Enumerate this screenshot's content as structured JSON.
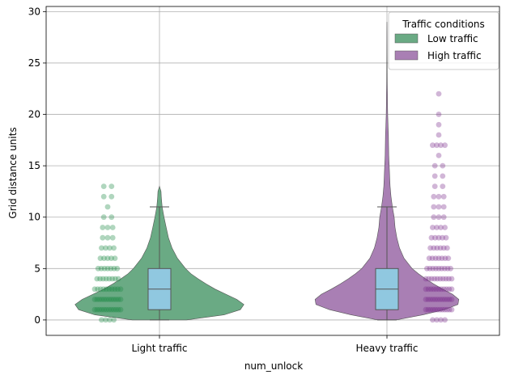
{
  "chart_data": {
    "type": "violin",
    "xlabel": "num_unlock",
    "ylabel": "Grid distance units",
    "ylim": [
      -1.5,
      30.5
    ],
    "yticks": [
      0,
      5,
      10,
      15,
      20,
      25,
      30
    ],
    "categories": [
      "Light traffic",
      "Heavy traffic"
    ],
    "grid": true,
    "legend": {
      "title": "Traffic conditions",
      "placement": "top-right",
      "entries": [
        {
          "label": "Low traffic",
          "color": "#6aaa84"
        },
        {
          "label": "High traffic",
          "color": "#a97fb4"
        }
      ]
    },
    "series": [
      {
        "name": "Low traffic",
        "category": "Light traffic",
        "fill_color": "#6aaa84",
        "point_color": "#1e8a45",
        "box": {
          "q1": 1,
          "median": 3,
          "q3": 5,
          "whisker_low": 0,
          "whisker_high": 11
        },
        "density": [
          [
            0,
            0.3
          ],
          [
            0.5,
            0.72
          ],
          [
            1,
            0.9
          ],
          [
            1.5,
            0.94
          ],
          [
            2,
            0.86
          ],
          [
            2.5,
            0.74
          ],
          [
            3,
            0.62
          ],
          [
            3.5,
            0.52
          ],
          [
            4,
            0.43
          ],
          [
            4.5,
            0.35
          ],
          [
            5,
            0.29
          ],
          [
            6,
            0.2
          ],
          [
            7,
            0.14
          ],
          [
            8,
            0.1
          ],
          [
            9,
            0.075
          ],
          [
            10,
            0.05
          ],
          [
            11,
            0.03
          ],
          [
            12,
            0.02
          ],
          [
            12.5,
            0.017
          ],
          [
            13,
            0.0
          ]
        ],
        "strip_values": [
          0,
          1,
          2,
          3,
          4,
          5,
          6,
          7,
          8,
          9,
          10,
          11,
          12,
          13
        ],
        "strip_counts": [
          4,
          12,
          12,
          10,
          8,
          7,
          5,
          4,
          3,
          3,
          2,
          1,
          2,
          2
        ]
      },
      {
        "name": "High traffic",
        "category": "Heavy traffic",
        "fill_color": "#a97fb4",
        "point_color": "#7a2f8c",
        "box": {
          "q1": 1,
          "median": 3,
          "q3": 5,
          "whisker_low": 0,
          "whisker_high": 11
        },
        "density": [
          [
            0,
            0.1
          ],
          [
            0.5,
            0.4
          ],
          [
            1,
            0.64
          ],
          [
            1.5,
            0.79
          ],
          [
            2,
            0.8
          ],
          [
            2.5,
            0.73
          ],
          [
            3,
            0.62
          ],
          [
            3.5,
            0.52
          ],
          [
            4,
            0.43
          ],
          [
            4.5,
            0.35
          ],
          [
            5,
            0.28
          ],
          [
            6,
            0.19
          ],
          [
            7,
            0.14
          ],
          [
            8,
            0.11
          ],
          [
            9,
            0.09
          ],
          [
            10,
            0.08
          ],
          [
            11,
            0.06
          ],
          [
            12,
            0.045
          ],
          [
            13,
            0.035
          ],
          [
            14,
            0.03
          ],
          [
            15,
            0.025
          ],
          [
            16,
            0.02
          ],
          [
            17,
            0.018
          ],
          [
            18,
            0.016
          ],
          [
            19,
            0.012
          ],
          [
            20,
            0.008
          ],
          [
            21,
            0.006
          ],
          [
            22,
            0.005
          ],
          [
            23,
            0.004
          ],
          [
            24,
            0.003
          ],
          [
            26,
            0.002
          ],
          [
            28,
            0.001
          ],
          [
            29,
            0.0
          ]
        ],
        "strip_values": [
          0,
          1,
          2,
          3,
          4,
          5,
          6,
          7,
          8,
          9,
          10,
          11,
          12,
          13,
          14,
          15,
          16,
          17,
          18,
          19,
          20,
          22
        ],
        "strip_counts": [
          4,
          12,
          12,
          11,
          10,
          9,
          7,
          6,
          5,
          4,
          3,
          3,
          3,
          2,
          2,
          2,
          1,
          4,
          1,
          1,
          1,
          1
        ]
      }
    ]
  }
}
